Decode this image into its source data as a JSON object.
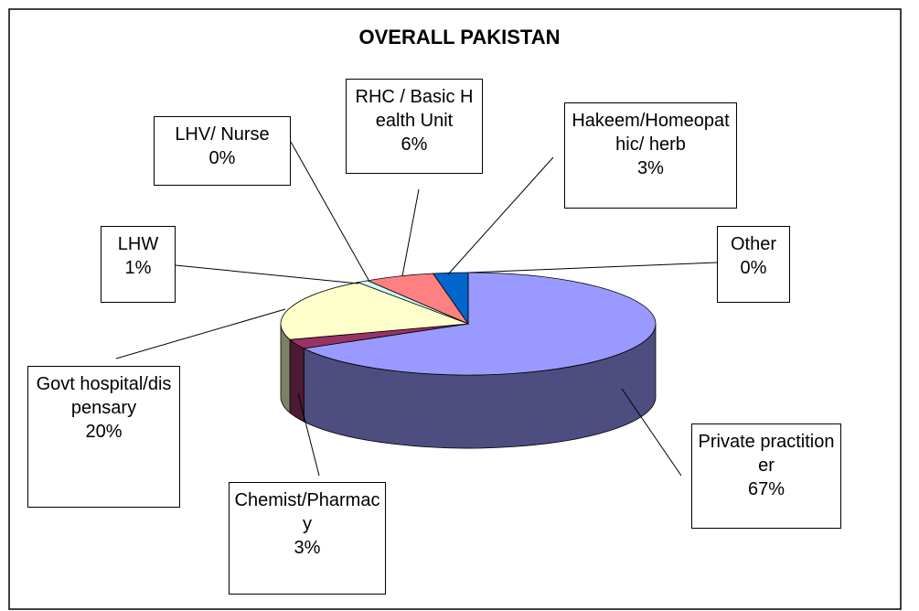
{
  "chart_data": {
    "type": "pie3d",
    "title": "OVERALL PAKISTAN",
    "categories": [
      "Private practitioner",
      "Chemist/Pharmacy",
      "Govt hospital/dispensary",
      "LHW",
      "LHV/ Nurse",
      "RHC / Basic Health Unit",
      "Hakeem/Homeopathic/ herb",
      "Other"
    ],
    "values": [
      67,
      3,
      20,
      1,
      0,
      6,
      3,
      0
    ],
    "value_labels": [
      "67%",
      "3%",
      "20%",
      "1%",
      "0%",
      "6%",
      "3%",
      "0%"
    ],
    "colors": [
      "#9999ff",
      "#993366",
      "#ffffcc",
      "#ccffff",
      "#660066",
      "#ff8080",
      "#0066cc",
      "#ccccff"
    ]
  }
}
